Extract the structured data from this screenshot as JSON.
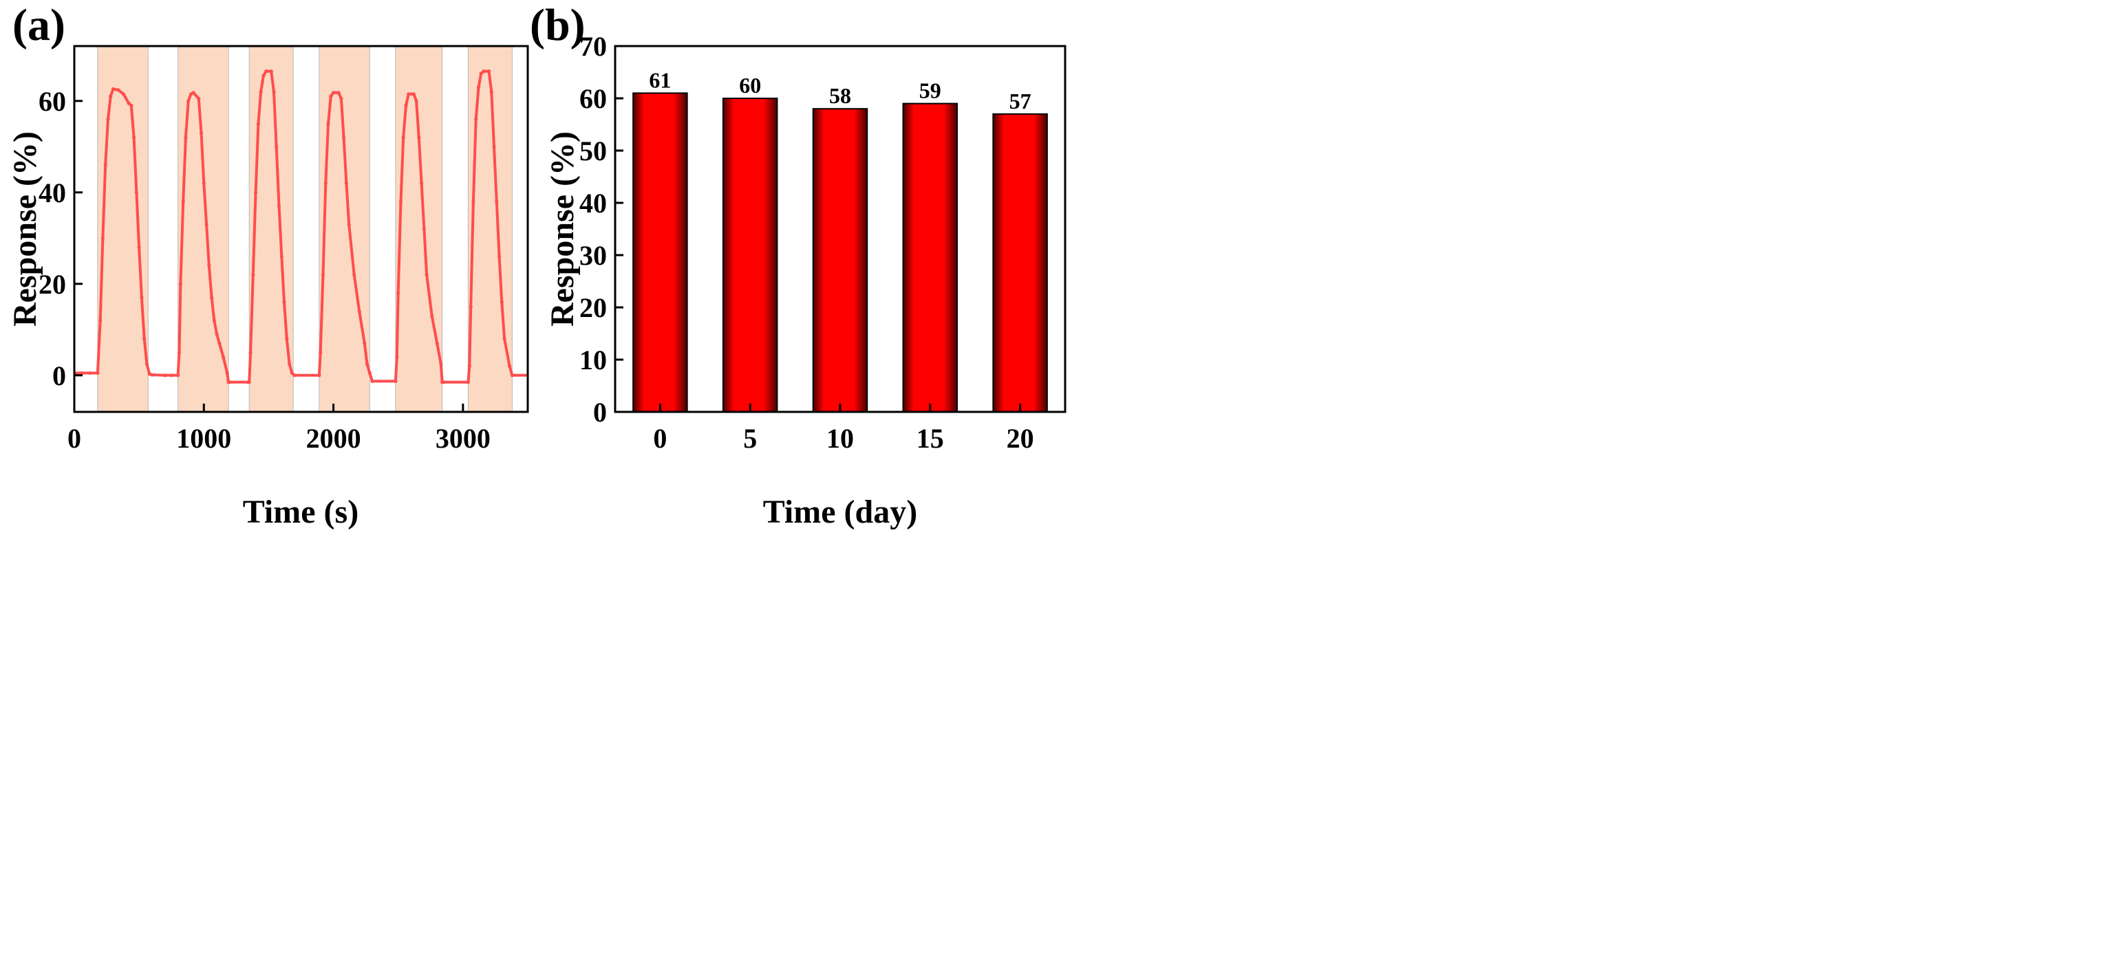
{
  "colors": {
    "line": "#ff4d4d",
    "bar_center": "#ff0000",
    "bar_edge": "#4a0000",
    "shade": "#fcd9c2",
    "shade_edge": "#b9b9b9",
    "axis": "#000000"
  },
  "panels": {
    "a": {
      "label": "(a)"
    },
    "b": {
      "label": "(b)"
    }
  },
  "chart_data": [
    {
      "panel": "(a)",
      "type": "line",
      "title": "",
      "xlabel": "Time (s)",
      "ylabel": "Response (%)",
      "xlim": [
        0,
        3500
      ],
      "ylim": [
        -8,
        72
      ],
      "xticks": [
        0,
        1000,
        2000,
        3000
      ],
      "yticks": [
        0,
        20,
        40,
        60
      ],
      "shaded_intervals": [
        [
          180,
          570
        ],
        [
          800,
          1190
        ],
        [
          1350,
          1690
        ],
        [
          1890,
          2280
        ],
        [
          2480,
          2840
        ],
        [
          3040,
          3380
        ]
      ],
      "series": [
        {
          "name": "Response",
          "x": [
            0,
            60,
            120,
            180,
            200,
            220,
            240,
            260,
            280,
            300,
            340,
            380,
            420,
            440,
            460,
            480,
            500,
            520,
            540,
            560,
            580,
            600,
            700,
            750,
            800,
            810,
            820,
            840,
            860,
            880,
            900,
            920,
            960,
            980,
            1000,
            1020,
            1040,
            1060,
            1080,
            1100,
            1120,
            1150,
            1180,
            1190,
            1200,
            1340,
            1350,
            1360,
            1380,
            1400,
            1420,
            1440,
            1460,
            1480,
            1520,
            1540,
            1560,
            1580,
            1600,
            1620,
            1640,
            1660,
            1680,
            1700,
            1890,
            1900,
            1920,
            1940,
            1960,
            1980,
            2000,
            2040,
            2060,
            2080,
            2100,
            2120,
            2160,
            2200,
            2240,
            2260,
            2280,
            2300,
            2480,
            2490,
            2500,
            2520,
            2540,
            2560,
            2580,
            2620,
            2640,
            2660,
            2680,
            2700,
            2720,
            2760,
            2800,
            2830,
            2840,
            2850,
            3040,
            3050,
            3060,
            3080,
            3100,
            3120,
            3140,
            3160,
            3200,
            3220,
            3240,
            3260,
            3280,
            3300,
            3320,
            3360,
            3380,
            3500
          ],
          "y": [
            0.5,
            0.5,
            0.5,
            0.5,
            12,
            30,
            46,
            56,
            61,
            62.6,
            62.4,
            61.5,
            59.5,
            59,
            52,
            40,
            28,
            17,
            8,
            2.5,
            0.3,
            0.1,
            0,
            0,
            0,
            5,
            20,
            38,
            52,
            60,
            61.5,
            61.8,
            60.5,
            53,
            42,
            33,
            24,
            17,
            12,
            9,
            7,
            4,
            0.5,
            -1.5,
            -1.5,
            -1.5,
            -1.5,
            5,
            22,
            40,
            55,
            62,
            65.5,
            66.5,
            66.5,
            62,
            50,
            37,
            26,
            16,
            8,
            2.5,
            0.5,
            0,
            0,
            5,
            22,
            42,
            55,
            61,
            61.8,
            61.8,
            60.5,
            52,
            42,
            33,
            22,
            14,
            7,
            2.5,
            0.5,
            -1.3,
            -1.3,
            4,
            18,
            38,
            52,
            59,
            61.5,
            61.5,
            60,
            52,
            42,
            32,
            22,
            13,
            7,
            2.5,
            -1.5,
            -1.5,
            -1.5,
            2,
            15,
            38,
            56,
            63,
            66,
            66.5,
            66.5,
            62,
            50,
            38,
            26,
            16,
            8,
            2,
            0,
            0
          ]
        }
      ]
    },
    {
      "panel": "(b)",
      "type": "bar",
      "title": "",
      "xlabel": "Time (day)",
      "ylabel": "Response (%)",
      "ylim": [
        0,
        70
      ],
      "yticks": [
        0,
        10,
        20,
        30,
        40,
        50,
        60,
        70
      ],
      "categories": [
        "0",
        "5",
        "10",
        "15",
        "20"
      ],
      "values": [
        61,
        60,
        58,
        59,
        57
      ],
      "data_labels": [
        "61",
        "60",
        "58",
        "59",
        "57"
      ]
    }
  ]
}
